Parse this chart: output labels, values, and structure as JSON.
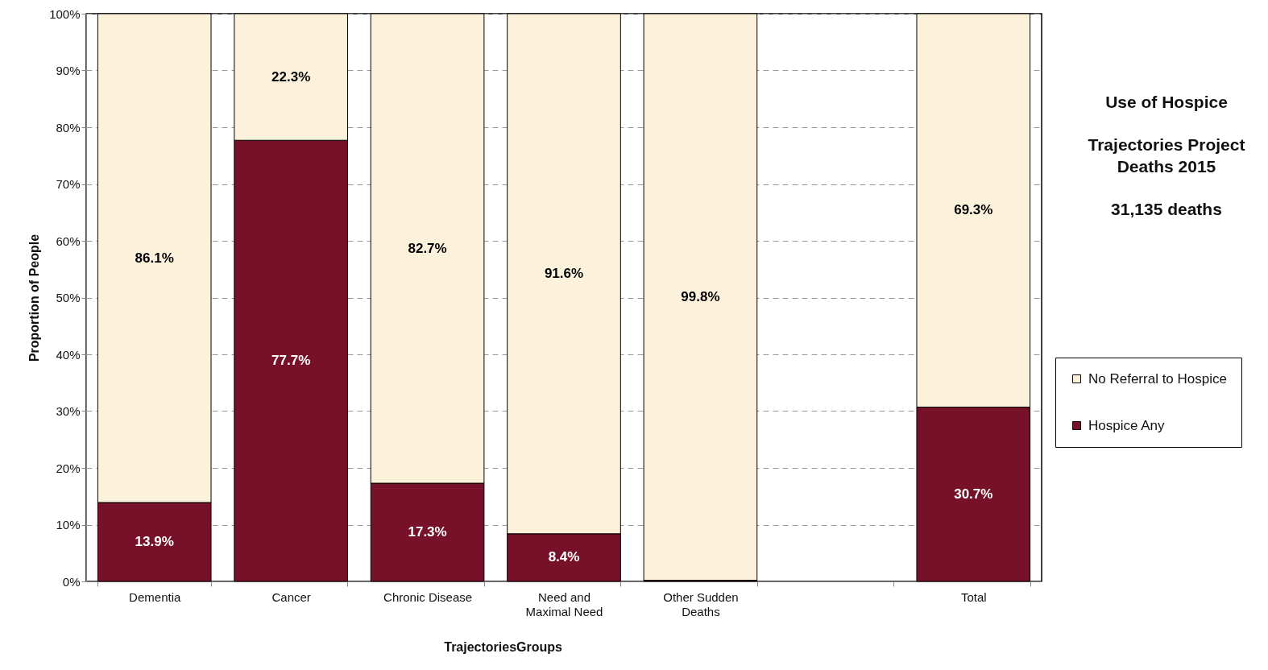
{
  "chart_data": {
    "type": "bar",
    "stacked": true,
    "title": "Use of Hospice",
    "subtitle": "Trajectories Project Deaths 2015",
    "annotations": [
      "31,135 deaths"
    ],
    "xlabel": "TrajectoriesGroups",
    "ylabel": "Proportion of People",
    "categories": [
      "Dementia",
      "Cancer",
      "Chronic Disease",
      "Need and Maximal Need",
      "Other Sudden Deaths",
      null,
      "Total"
    ],
    "series": [
      {
        "name": "Hospice Any",
        "color": "#761129",
        "values": [
          13.9,
          77.7,
          17.3,
          8.4,
          0.2,
          null,
          30.7
        ],
        "value_labels": [
          "13.9%",
          "77.7%",
          "17.3%",
          "8.4%",
          null,
          null,
          "30.7%"
        ]
      },
      {
        "name": "No Referral to Hospice",
        "color": "#fcf2dc",
        "values": [
          86.1,
          22.3,
          82.7,
          91.6,
          99.8,
          null,
          69.3
        ],
        "value_labels": [
          "86.1%",
          "22.3%",
          "82.7%",
          "91.6%",
          "99.8%",
          null,
          "69.3%"
        ]
      }
    ],
    "ylim": [
      0,
      100
    ],
    "yticks": [
      {
        "value": 0,
        "label": "0%"
      },
      {
        "value": 10,
        "label": "10%"
      },
      {
        "value": 20,
        "label": "20%"
      },
      {
        "value": 30,
        "label": "30%"
      },
      {
        "value": 40,
        "label": "40%"
      },
      {
        "value": 50,
        "label": "50%"
      },
      {
        "value": 60,
        "label": "60%"
      },
      {
        "value": 70,
        "label": "70%"
      },
      {
        "value": 80,
        "label": "80%"
      },
      {
        "value": 90,
        "label": "90%"
      },
      {
        "value": 100,
        "label": "100%"
      }
    ],
    "grid": "y",
    "legend": "right"
  }
}
